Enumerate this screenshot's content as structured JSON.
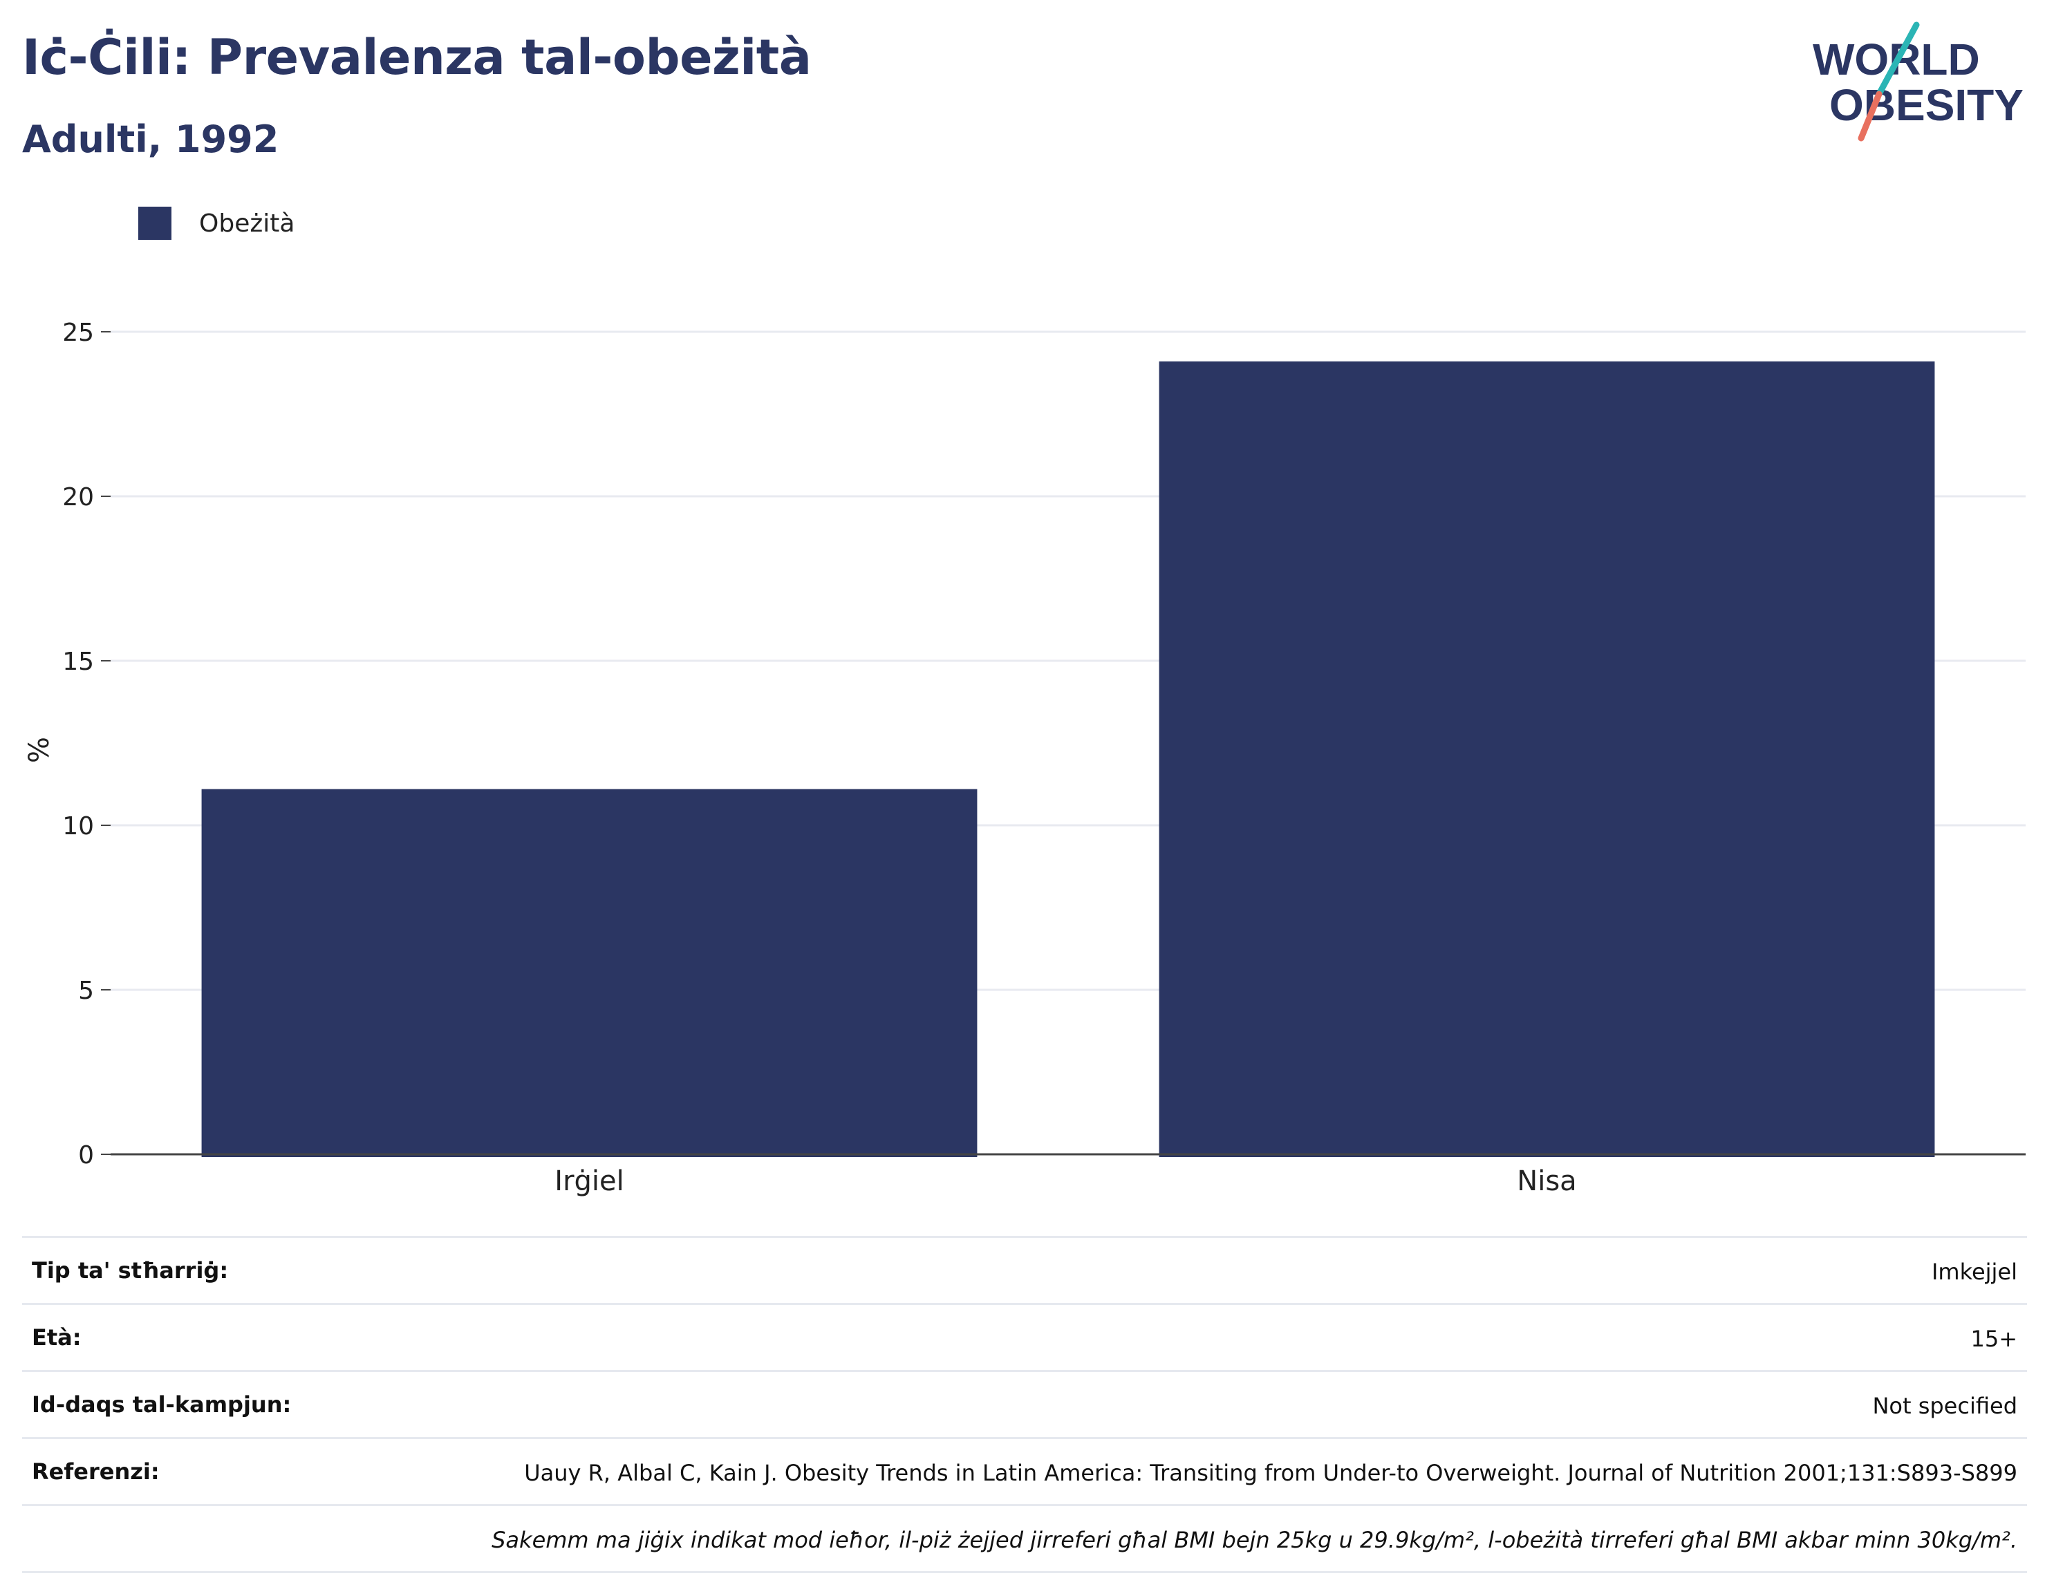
{
  "title": "Iċ-Ċili: Prevalenza tal-obeżità",
  "subtitle": "Adulti, 1992",
  "logo": {
    "line1": "WORLD",
    "line2": "OBESITY"
  },
  "colors": {
    "bar": "#2b3663",
    "title": "#2b3663",
    "logo_text": "#2b3663",
    "logo_slash_teal": "#2bb5b5",
    "logo_slash_coral": "#e8705f",
    "grid": "#e8eaf0"
  },
  "legend": {
    "label": "Obeżità"
  },
  "chart_data": {
    "type": "bar",
    "categories": [
      "Irġiel",
      "Nisa"
    ],
    "series": [
      {
        "name": "Obeżità",
        "values": [
          11.1,
          24.1
        ]
      }
    ],
    "ylabel": "%",
    "xlabel": "",
    "ylim": [
      0,
      25
    ],
    "yticks": [
      0,
      5,
      10,
      15,
      20,
      25
    ],
    "grid": true,
    "legend_position": "top-left"
  },
  "info": {
    "rows": [
      {
        "label": "Tip ta' stħarriġ:",
        "value": "Imkejjel"
      },
      {
        "label": "Età:",
        "value": "15+"
      },
      {
        "label": "Id-daqs tal-kampjun:",
        "value": "Not specified"
      },
      {
        "label": "Referenzi:",
        "value": "Uauy R, Albal C, Kain J. Obesity Trends in Latin America: Transiting from Under-to Overweight. Journal of Nutrition 2001;131:S893-S899"
      }
    ],
    "note": "Sakemm ma jiġix indikat mod ieħor, il-piż żejjed jirreferi għal BMI bejn 25kg u 29.9kg/m², l-obeżità tirreferi għal BMI akbar minn 30kg/m²."
  }
}
